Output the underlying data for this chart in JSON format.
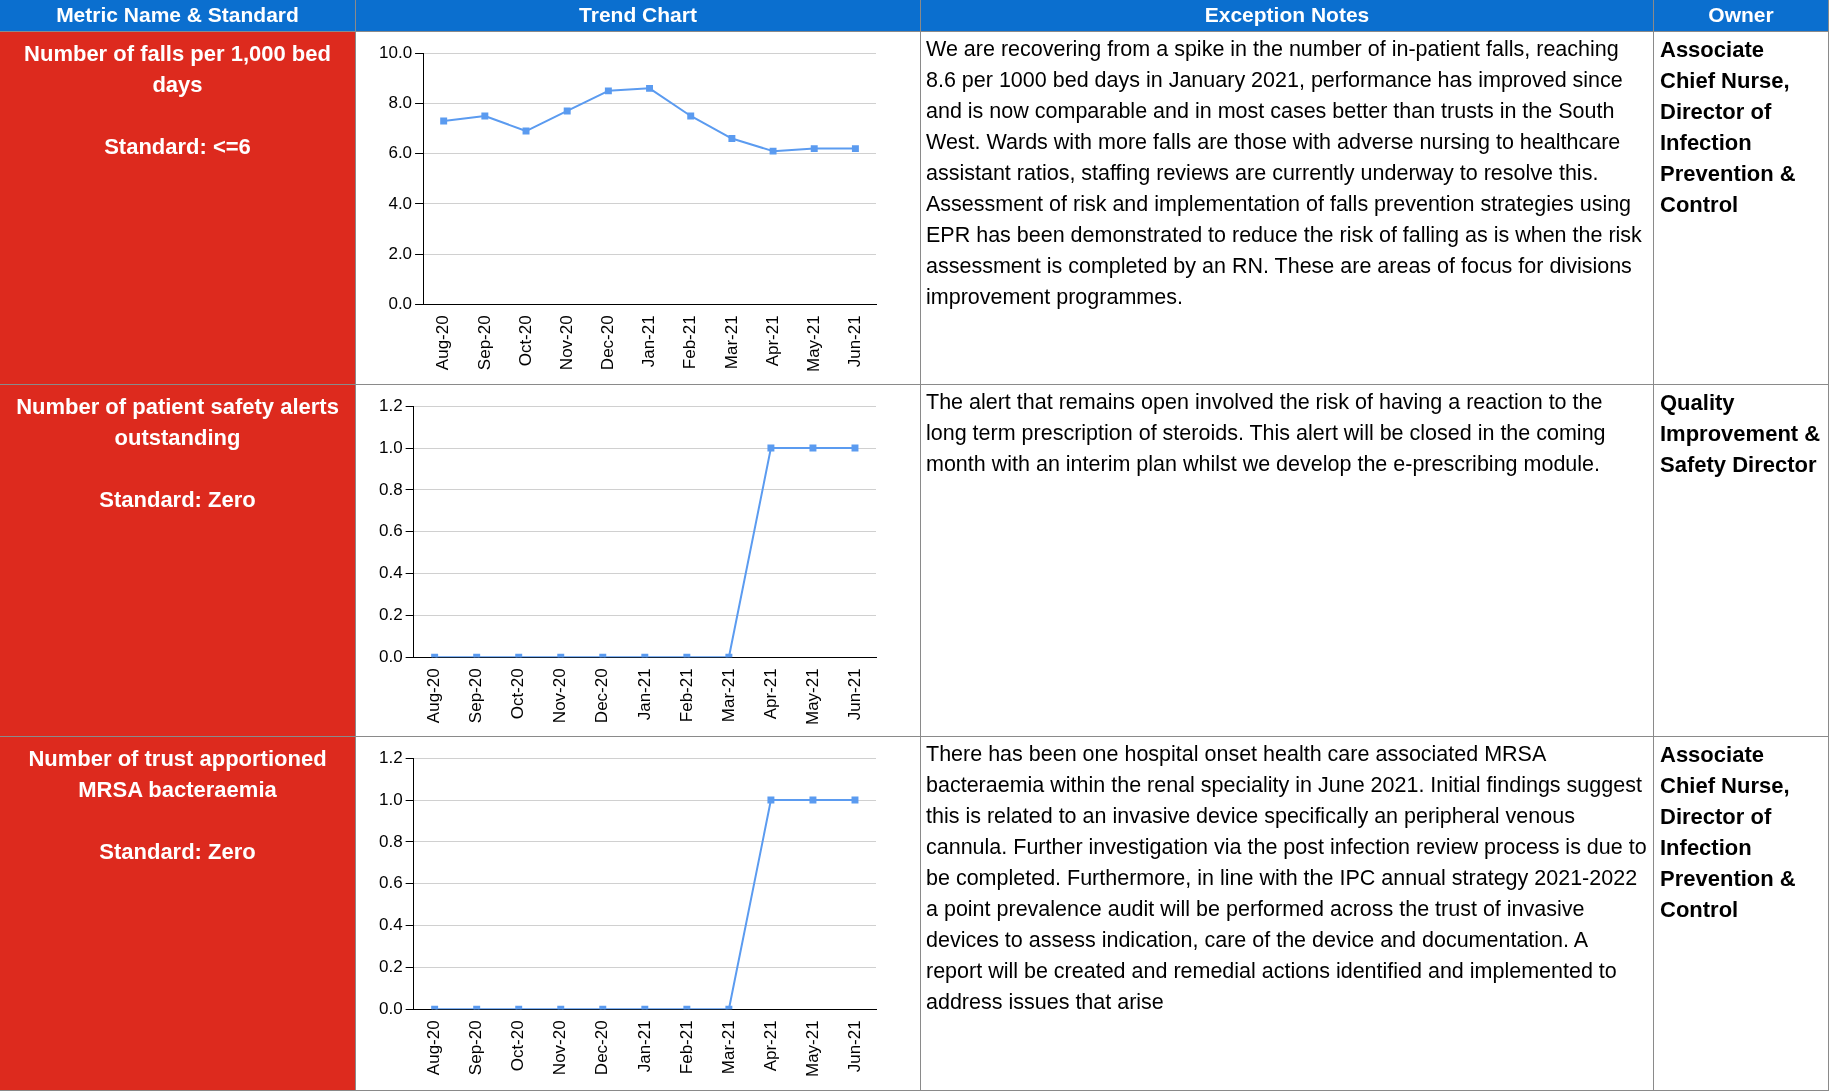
{
  "chart_data": [
    {
      "type": "other",
      "annotations": [
        "Metric Name & Standard",
        "Trend Chart",
        "Exception Notes",
        "Owner"
      ]
    },
    {
      "type": "other",
      "title": "Number of falls per 1,000 bed days",
      "subtitle": "Standard: <=6"
    },
    {
      "type": "line",
      "categories": [
        "Aug-20",
        "Sep-20",
        "Oct-20",
        "Nov-20",
        "Dec-20",
        "Jan-21",
        "Feb-21",
        "Mar-21",
        "Apr-21",
        "May-21",
        "Jun-21"
      ],
      "values": [
        7.3,
        7.5,
        6.9,
        7.7,
        8.5,
        8.6,
        7.5,
        6.6,
        6.1,
        6.2,
        6.2
      ],
      "color": "#5b9bf0",
      "ylim": [
        0,
        10
      ],
      "yticks": [
        {
          "value": 0,
          "label": "0.0"
        },
        {
          "value": 2,
          "label": "2.0"
        },
        {
          "value": 4,
          "label": "4.0"
        },
        {
          "value": 6,
          "label": "6.0"
        },
        {
          "value": 8,
          "label": "8.0"
        },
        {
          "value": 10,
          "label": "10.0"
        }
      ],
      "grid": "y",
      "marker": "square"
    },
    {
      "type": "other",
      "annotations": [
        "We are recovering from a spike in the number of in-patient falls, reaching 8.6 per 1000 bed days in January 2021, performance has improved since and is now comparable and in most cases better than trusts in the South West. Wards with more falls are those with adverse nursing to healthcare assistant ratios, staffing reviews are currently underway to resolve this. Assessment of risk and implementation of falls prevention strategies using EPR has been demonstrated to reduce the risk of falling as is when the risk assessment is completed by an RN. These are areas of focus for divisions improvement programmes.",
        "Associate Chief Nurse, Director of Infection Prevention & Control"
      ]
    },
    {
      "type": "other",
      "title": "Number of patient safety alerts outstanding",
      "subtitle": "Standard: Zero"
    },
    {
      "type": "line",
      "categories": [
        "Aug-20",
        "Sep-20",
        "Oct-20",
        "Nov-20",
        "Dec-20",
        "Jan-21",
        "Feb-21",
        "Mar-21",
        "Apr-21",
        "May-21",
        "Jun-21"
      ],
      "values": [
        0,
        0,
        0,
        0,
        0,
        0,
        0,
        0,
        1,
        1,
        1
      ],
      "color": "#5b9bf0",
      "ylim": [
        0,
        1.2
      ],
      "yticks": [
        {
          "value": 0,
          "label": "0.0"
        },
        {
          "value": 0.2,
          "label": "0.2"
        },
        {
          "value": 0.4,
          "label": "0.4"
        },
        {
          "value": 0.6,
          "label": "0.6"
        },
        {
          "value": 0.8,
          "label": "0.8"
        },
        {
          "value": 1,
          "label": "1.0"
        },
        {
          "value": 1.2,
          "label": "1.2"
        }
      ],
      "grid": "y",
      "marker": "square"
    },
    {
      "type": "other",
      "annotations": [
        "The alert that remains open involved the risk of having a reaction to the long term prescription of steroids. This alert will be closed in the coming month with an interim plan whilst we develop the e-prescribing module.",
        "Quality Improvement & Safety Director"
      ]
    },
    {
      "type": "other",
      "title": "Number of trust apportioned MRSA bacteraemia",
      "subtitle": "Standard: Zero"
    },
    {
      "type": "line",
      "categories": [
        "Aug-20",
        "Sep-20",
        "Oct-20",
        "Nov-20",
        "Dec-20",
        "Jan-21",
        "Feb-21",
        "Mar-21",
        "Apr-21",
        "May-21",
        "Jun-21"
      ],
      "values": [
        0,
        0,
        0,
        0,
        0,
        0,
        0,
        0,
        1,
        1,
        1
      ],
      "color": "#5b9bf0",
      "ylim": [
        0,
        1.2
      ],
      "yticks": [
        {
          "value": 0,
          "label": "0.0"
        },
        {
          "value": 0.2,
          "label": "0.2"
        },
        {
          "value": 0.4,
          "label": "0.4"
        },
        {
          "value": 0.6,
          "label": "0.6"
        },
        {
          "value": 0.8,
          "label": "0.8"
        },
        {
          "value": 1,
          "label": "1.0"
        },
        {
          "value": 1.2,
          "label": "1.2"
        }
      ],
      "grid": "y",
      "marker": "square"
    },
    {
      "type": "other",
      "annotations": [
        "There has been one hospital onset health care associated MRSA bacteraemia within the renal speciality in June 2021. Initial findings suggest this is related to an invasive device specifically an peripheral venous cannula. Further investigation via the post infection review process is due to be completed. Furthermore, in line with the IPC annual strategy 2021-2022 a point prevalence audit will be performed across the trust of invasive devices to assess indication, care of the device and documentation. A report will be created and remedial actions identified and implemented to address issues that arise",
        "Associate Chief Nurse, Director of Infection Prevention & Control"
      ]
    }
  ]
}
